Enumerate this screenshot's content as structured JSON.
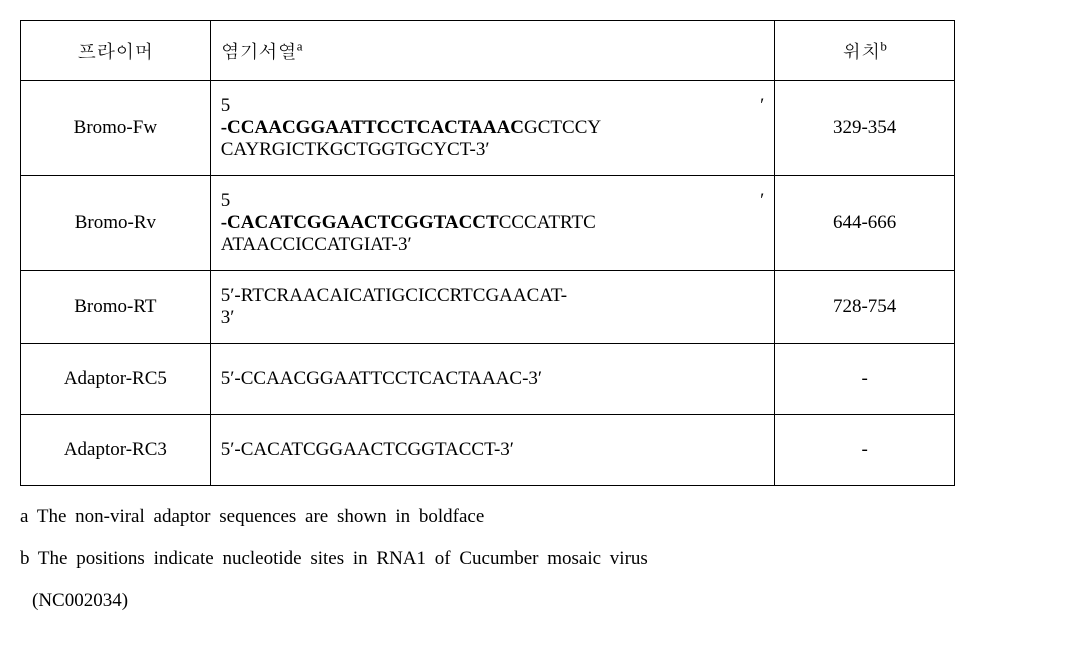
{
  "table": {
    "headers": {
      "primer": "프라이머",
      "sequence": "염기서열",
      "sequence_sup": "a",
      "position": "위치",
      "position_sup": "b"
    },
    "rows": [
      {
        "primer": "Bromo-Fw",
        "seq_prefix": "5",
        "seq_prime": "′",
        "seq_line2_bold": "-CCAACGGAATTCCTCACTAAAC",
        "seq_line2_rest": "GCTCCY",
        "seq_line3": "CAYRGICTKGCTGGTGCYCT-3′",
        "position": "329-354"
      },
      {
        "primer": "Bromo-Rv",
        "seq_prefix": "5",
        "seq_prime": "′",
        "seq_line2_bold": "-CACATCGGAACTCGGTACCT",
        "seq_line2_rest": "CCCATRTC",
        "seq_line3": "ATAACCICCATGIAT-3′",
        "position": "644-666"
      },
      {
        "primer": "Bromo-RT",
        "seq_single_pre": "5′-RTCRAACAICATIGCICCRTCGAACAT-",
        "seq_single_post": "3′",
        "position": "728-754"
      },
      {
        "primer": "Adaptor-RC5",
        "seq_plain": "5′-CCAACGGAATTCCTCACTAAAC-3′",
        "position": "-"
      },
      {
        "primer": "Adaptor-RC3",
        "seq_plain": "5′-CACATCGGAACTCGGTACCT-3′",
        "position": "-"
      }
    ]
  },
  "footnotes": {
    "a": "a  The  non-viral  adaptor  sequences  are  shown  in  boldface",
    "b_line1": "b  The  positions  indicate  nucleotide  sites  in  RNA1  of  Cucumber  mosaic  virus",
    "b_line2": "(NC002034)"
  }
}
